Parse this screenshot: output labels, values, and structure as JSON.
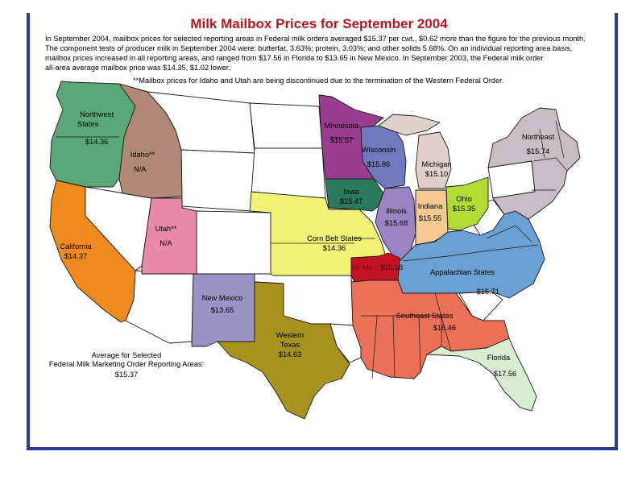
{
  "title": "Milk Mailbox Prices for September 2004",
  "intro": {
    "lines": [
      "In September 2004, mailbox prices for selected reporting areas in Federal milk orders averaged $15.37 per cwt., $0.62 more than the figure for the previous month.",
      "The component tests of producer milk in September 2004 were: butterfat, 3.63%; protein, 3.03%; and other solids 5.68%. On an individual reporting area basis,",
      "mailbox prices increased in all reporting areas, and ranged from $17.56 in Florida to $13.65 in New Mexico.  In September 2003, the Federal milk order",
      "all-area average mailbox price was $14.35, $1.02 lower."
    ]
  },
  "note": "**Mailbox prices for Idaho and Utah are being discontinued due to the termination of the Western Federal Order.",
  "colors": {
    "frame": "#2a3a8f",
    "title": "#c0141c",
    "northwest": "#5aa87a",
    "idaho": "#b08878",
    "california": "#ef8a1c",
    "utah": "#e88aa8",
    "new_mexico": "#9a94c6",
    "western_texas": "#a8921e",
    "corn_belt": "#f2f276",
    "iowa": "#2a7a5c",
    "minnesota": "#9a3c90",
    "wisconsin": "#7078be",
    "michigan": "#e0d2ca",
    "illinois": "#9c84c4",
    "indiana": "#f6c892",
    "ohio": "#b2dc32",
    "st_louis": "#c41424",
    "southeast": "#ea7058",
    "appalachian": "#6aa0d2",
    "florida": "#d8ecd2",
    "northeast": "#c8bcc6"
  },
  "regions": {
    "northwest": {
      "name": "Northwest",
      "name2": "States",
      "price": "$14.36"
    },
    "idaho": {
      "name": "Idaho**",
      "price": "N/A"
    },
    "california": {
      "name": "California",
      "price": "$14.37"
    },
    "utah": {
      "name": "Utah**",
      "price": "N/A"
    },
    "new_mexico": {
      "name": "New Mexico",
      "price": "$13.65"
    },
    "western_texas": {
      "name": "Western",
      "name2": "Texas",
      "price": "$14.63"
    },
    "corn_belt": {
      "name": "Corn Belt States",
      "price": "$14.36"
    },
    "iowa": {
      "name": "Iowa",
      "price": "$15.47"
    },
    "minnesota": {
      "name": "Minnesota",
      "price": "$15.57"
    },
    "wisconsin": {
      "name": "Wisconsin",
      "price": "$15.86"
    },
    "michigan": {
      "name": "Michigan",
      "price": "$15.10"
    },
    "illinois": {
      "name": "Illinois",
      "price": "$15.68"
    },
    "indiana": {
      "name": "Indiana",
      "price": "$15.55"
    },
    "ohio": {
      "name": "Ohio",
      "price": "$15.35"
    },
    "st_louis": {
      "name": "St. Mo.",
      "price": "$15.18"
    },
    "southeast": {
      "name": "Southeast States",
      "price": "$16.46"
    },
    "appalachian": {
      "name": "Appalachian States",
      "price": "$15.71"
    },
    "florida": {
      "name": "Florida",
      "price": "$17.56"
    },
    "northeast": {
      "name": "Northeast",
      "price": "$15.74"
    }
  },
  "average": {
    "line1": "Average for Selected",
    "line2": "Federal Milk Marketing Order Reporting Areas:",
    "value": "$15.37"
  }
}
